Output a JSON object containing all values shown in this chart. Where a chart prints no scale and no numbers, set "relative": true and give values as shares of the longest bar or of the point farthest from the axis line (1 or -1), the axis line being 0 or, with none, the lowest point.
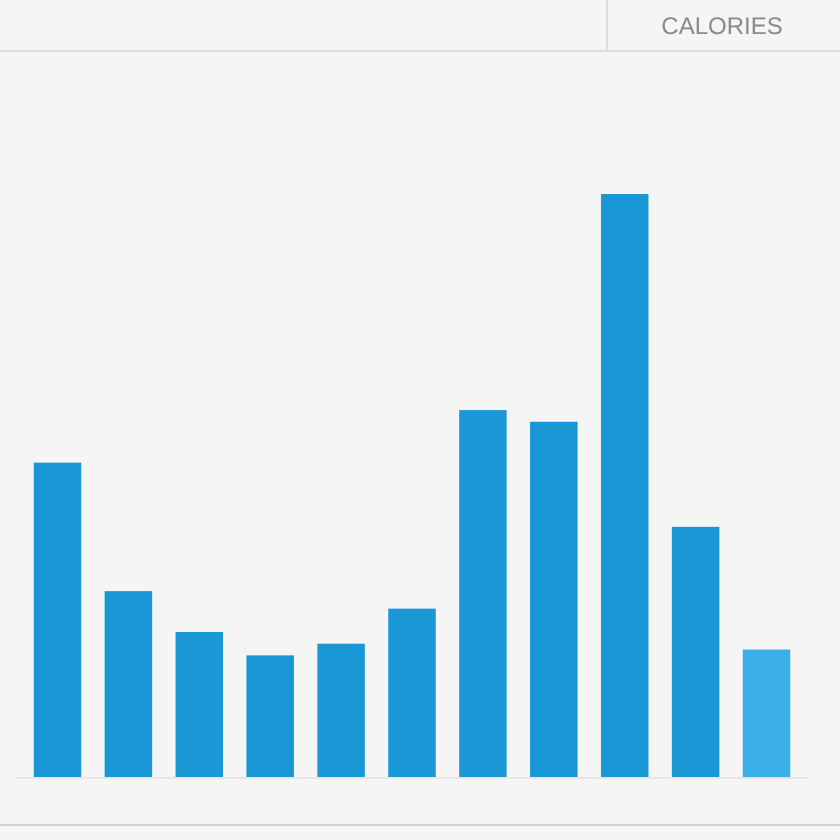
{
  "chart_data": {
    "type": "bar",
    "title": "CALORIES",
    "relative": true,
    "categories": [
      null,
      null,
      null,
      null,
      null,
      null,
      null,
      null,
      null,
      null,
      null
    ],
    "values": [
      0.54,
      0.32,
      0.25,
      0.21,
      0.23,
      0.29,
      0.63,
      0.61,
      1,
      0.43,
      0.22
    ],
    "colors": [
      "#1a98d5",
      "#1a98d5",
      "#1a98d5",
      "#1a98d5",
      "#1a98d5",
      "#1a98d5",
      "#1a98d5",
      "#1a98d5",
      "#1a98d5",
      "#1a98d5",
      "#3aaee6"
    ]
  }
}
